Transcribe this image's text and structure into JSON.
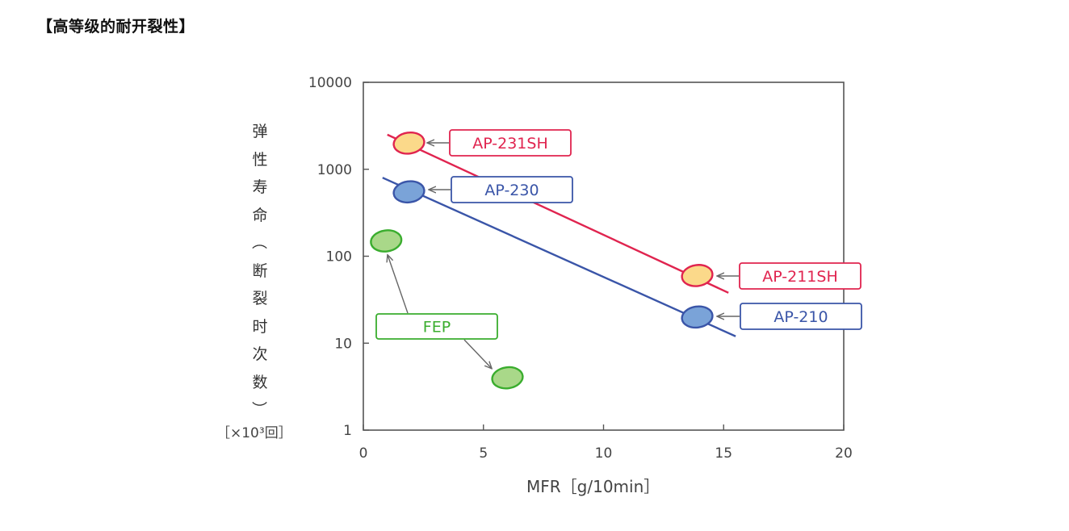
{
  "heading": "【高等级的耐开裂性】",
  "chart_data": {
    "type": "scatter",
    "title": "",
    "xlabel": "MFR［g/10min］",
    "ylabel": "弹性寿命（断裂时次数）",
    "yunit": "［×10³回］",
    "xlim": [
      0,
      20
    ],
    "ylim": [
      1,
      10000
    ],
    "yscale": "log",
    "x_ticks": [
      "0",
      "5",
      "10",
      "15",
      "20"
    ],
    "y_ticks": [
      "10000",
      "1000",
      "100",
      "10",
      "1"
    ],
    "series": [
      {
        "name": "AP-231SH",
        "color": "#e0244f",
        "fill": "#fbd98a",
        "points": [
          {
            "x": 1.9,
            "y": 2000
          },
          {
            "x": 13.9,
            "y": 60
          }
        ],
        "trend": [
          {
            "x": 1.0,
            "y": 2500
          },
          {
            "x": 15.2,
            "y": 38
          }
        ]
      },
      {
        "name": "AP-230",
        "color": "#3a55a8",
        "fill": "#7aa3d8",
        "points": [
          {
            "x": 1.9,
            "y": 550
          },
          {
            "x": 13.9,
            "y": 20
          }
        ],
        "trend": [
          {
            "x": 0.8,
            "y": 800
          },
          {
            "x": 15.5,
            "y": 12
          }
        ]
      },
      {
        "name": "FEP",
        "color": "#3aad2e",
        "fill": "#a9d889",
        "points": [
          {
            "x": 0.95,
            "y": 150
          },
          {
            "x": 6.0,
            "y": 4
          }
        ],
        "trend": []
      }
    ],
    "labels": [
      "AP-231SH",
      "AP-230",
      "AP-211SH",
      "AP-210",
      "FEP"
    ]
  }
}
